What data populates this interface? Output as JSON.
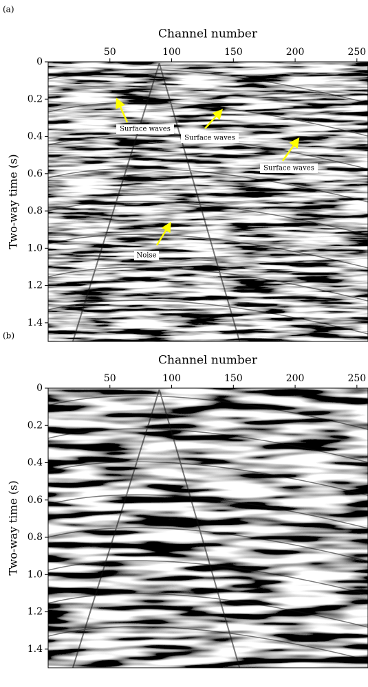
{
  "chart_data": [
    {
      "type": "image",
      "panel": "(a)",
      "xlabel": "Channel number",
      "ylabel": "Two-way time (s)",
      "xlim": [
        0,
        259
      ],
      "xticks": [
        50,
        100,
        150,
        200,
        250
      ],
      "ylim": [
        0,
        1.5
      ],
      "yticks": [
        0,
        0.2,
        0.4,
        0.6,
        0.8,
        {
          "value": 1,
          "label": "1.0"
        },
        1.2,
        1.4
      ],
      "annotations": [
        "Surface waves",
        "Surface waves",
        "Surface waves",
        "Noise"
      ],
      "annotation_color": "#ffff00"
    },
    {
      "type": "image",
      "panel": "(b)",
      "xlabel": "Channel number",
      "ylabel": "Two-way time (s)",
      "xlim": [
        0,
        259
      ],
      "xticks": [
        50,
        100,
        150,
        200,
        250
      ],
      "ylim": [
        0,
        1.5
      ],
      "yticks": [
        0,
        0.2,
        0.4,
        0.6,
        0.8,
        {
          "value": 1,
          "label": "1.0"
        },
        1.2,
        1.4
      ],
      "annotations": [],
      "annotation_color": "#ffff00"
    }
  ]
}
